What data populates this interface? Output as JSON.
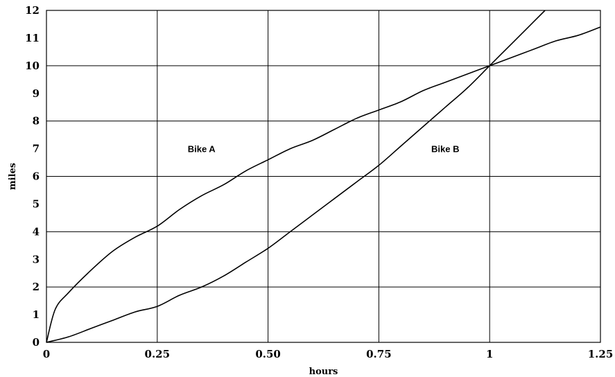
{
  "chart_data": {
    "type": "line",
    "title": "",
    "xlabel": "hours",
    "ylabel": "miles",
    "xlim": [
      0,
      1.25
    ],
    "ylim": [
      0,
      12
    ],
    "xticks": [
      {
        "value": 0,
        "label": "0"
      },
      {
        "value": 0.25,
        "label": "0.25"
      },
      {
        "value": 0.5,
        "label": "0.50"
      },
      {
        "value": 0.75,
        "label": "0.75"
      },
      {
        "value": 1,
        "label": "1"
      },
      {
        "value": 1.25,
        "label": "1.25"
      }
    ],
    "yticks": [
      {
        "value": 0,
        "label": "0"
      },
      {
        "value": 1,
        "label": "1"
      },
      {
        "value": 2,
        "label": "2"
      },
      {
        "value": 3,
        "label": "3"
      },
      {
        "value": 4,
        "label": "4"
      },
      {
        "value": 5,
        "label": "5"
      },
      {
        "value": 6,
        "label": "6"
      },
      {
        "value": 7,
        "label": "7"
      },
      {
        "value": 8,
        "label": "8"
      },
      {
        "value": 9,
        "label": "9"
      },
      {
        "value": 10,
        "label": "10"
      },
      {
        "value": 11,
        "label": "11"
      },
      {
        "value": 12,
        "label": "12"
      }
    ],
    "grid": true,
    "legend": "none",
    "series": [
      {
        "x": [
          0,
          0.02,
          0.05,
          0.1,
          0.15,
          0.2,
          0.25,
          0.3,
          0.35,
          0.4,
          0.45,
          0.5,
          0.55,
          0.6,
          0.65,
          0.7,
          0.75,
          0.8,
          0.85,
          0.9,
          0.95,
          1,
          1.05,
          1.1,
          1.15,
          1.2,
          1.25
        ],
        "y": [
          0,
          1.2,
          1.8,
          2.6,
          3.3,
          3.8,
          4.2,
          4.8,
          5.3,
          5.7,
          6.2,
          6.6,
          7.0,
          7.3,
          7.7,
          8.1,
          8.4,
          8.7,
          9.1,
          9.4,
          9.7,
          10.0,
          10.3,
          10.6,
          10.9,
          11.1,
          11.4
        ],
        "label": "Bike A",
        "label_at": [
          0.35,
          7
        ]
      },
      {
        "x": [
          0,
          0.05,
          0.1,
          0.15,
          0.2,
          0.25,
          0.3,
          0.35,
          0.4,
          0.45,
          0.5,
          0.55,
          0.6,
          0.65,
          0.7,
          0.75,
          0.8,
          0.85,
          0.9,
          0.95,
          1,
          1.05,
          1.1,
          1.125
        ],
        "y": [
          0,
          0.2,
          0.5,
          0.8,
          1.1,
          1.3,
          1.7,
          2.0,
          2.4,
          2.9,
          3.4,
          4.0,
          4.6,
          5.2,
          5.8,
          6.4,
          7.1,
          7.8,
          8.5,
          9.2,
          10.0,
          10.8,
          11.6,
          12.0
        ],
        "label": "Bike B",
        "label_at": [
          0.9,
          7
        ]
      }
    ]
  }
}
